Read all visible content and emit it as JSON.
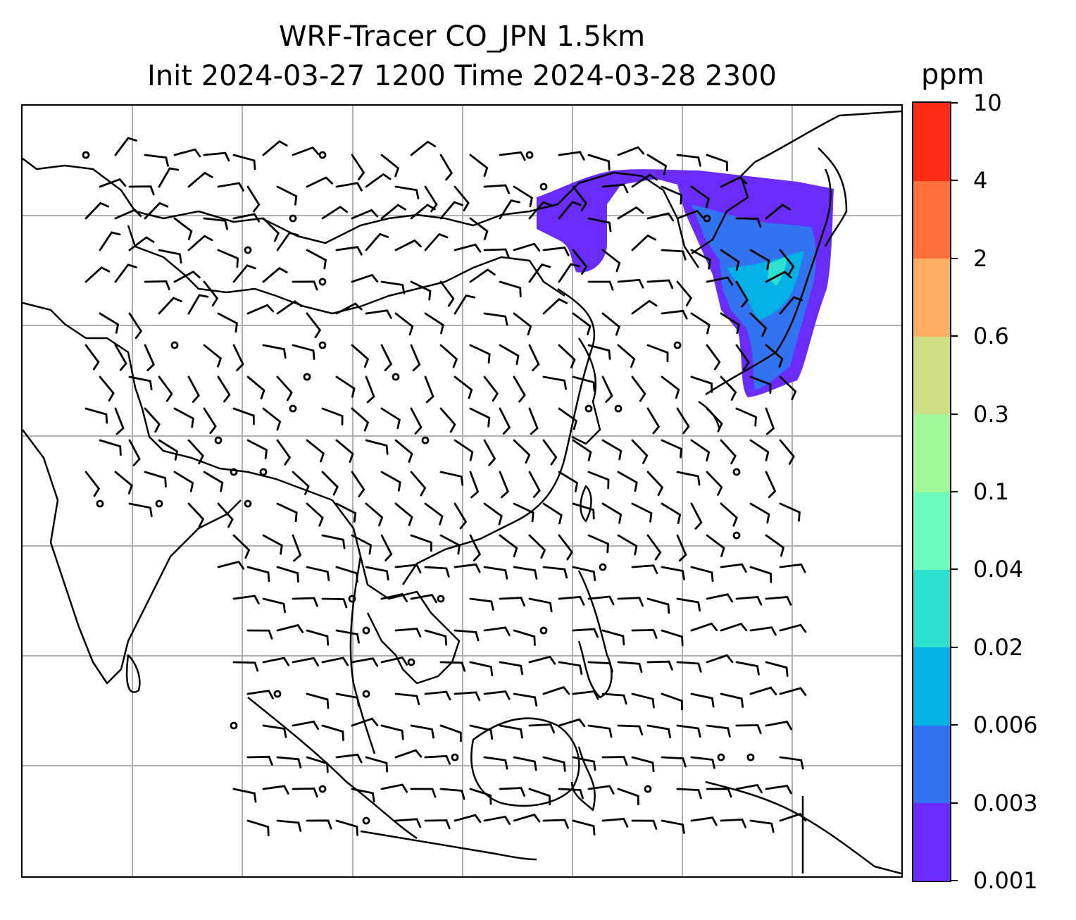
{
  "title": {
    "line1": "WRF-Tracer CO_JPN 1.5km",
    "line2": "Init 2024-03-27 1200 Time 2024-03-28 2300"
  },
  "colorbar": {
    "unit": "ppm",
    "tick_labels": [
      "0.001",
      "0.003",
      "0.006",
      "0.02",
      "0.04",
      "0.1",
      "0.3",
      "0.6",
      "2",
      "4",
      "10"
    ],
    "colors": [
      "#6a2cfb",
      "#3173f1",
      "#04b1e7",
      "#2ee0d0",
      "#6cfbbc",
      "#a0fa9a",
      "#d0de83",
      "#feae62",
      "#fe6f3b",
      "#fe2a16"
    ]
  },
  "map": {
    "gridlines": "on",
    "coastline_color": "#000000",
    "gridline_color": "#b0b0b0",
    "wind_barbs": "on",
    "tracer_plume_region": "Japan"
  }
}
